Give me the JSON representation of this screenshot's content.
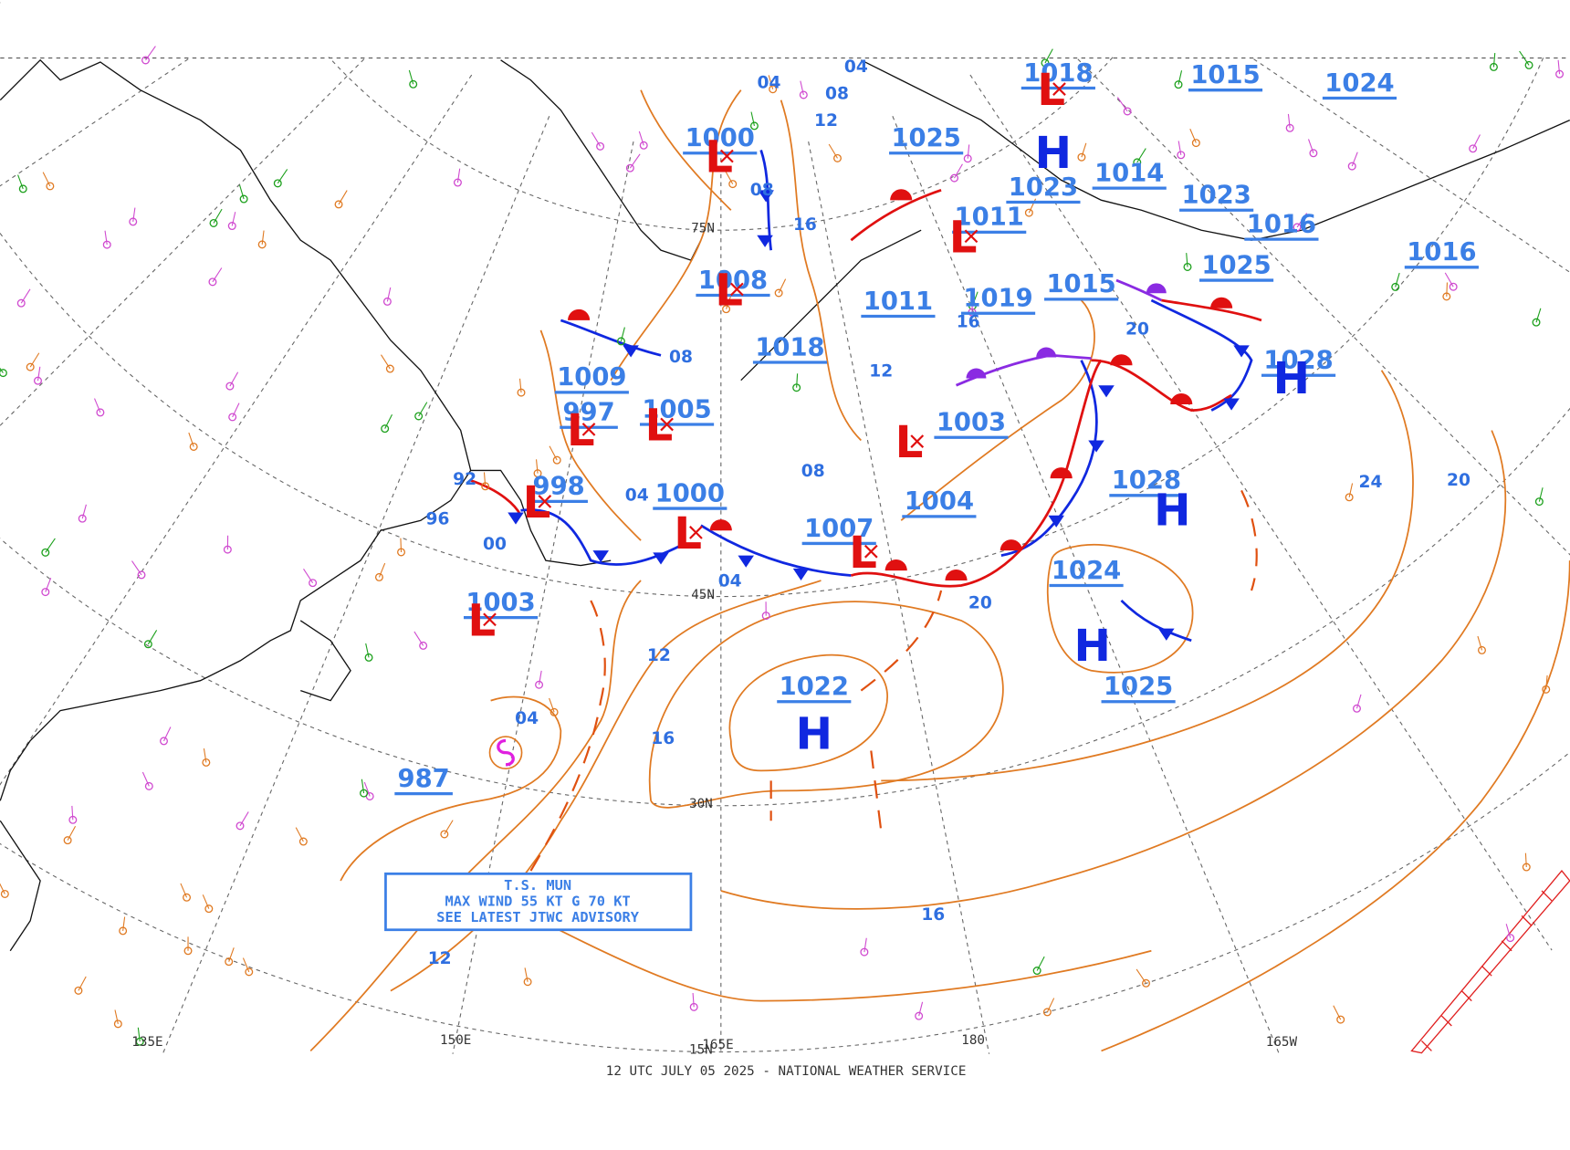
{
  "footer": "12 UTC JULY 05 2025 - NATIONAL WEATHER SERVICE",
  "storm_box": {
    "lines": [
      "T.S. MUN",
      "MAX WIND 55 KT G 70 KT",
      "SEE LATEST JTWC ADVISORY"
    ]
  },
  "grid_labels": [
    "75N",
    "45N",
    "30N",
    "15N",
    "135E",
    "150E",
    "165E",
    "180",
    "165W"
  ],
  "centers": [
    {
      "pressure": "1000",
      "symbol": "L"
    },
    {
      "pressure": "1008",
      "symbol": "L"
    },
    {
      "pressure": "1009"
    },
    {
      "pressure": "997",
      "symbol": "L"
    },
    {
      "pressure": "1005",
      "symbol": "L"
    },
    {
      "pressure": "998",
      "symbol": "L"
    },
    {
      "pressure": "1000",
      "symbol": "L"
    },
    {
      "pressure": "1007",
      "symbol": "L"
    },
    {
      "pressure": "1003",
      "symbol": "L"
    },
    {
      "pressure": "1003",
      "symbol": "L"
    },
    {
      "pressure": "1011",
      "symbol": "L"
    },
    {
      "pressure": "1018",
      "symbol": "L"
    },
    {
      "pressure": "987"
    },
    {
      "pressure": "1022",
      "symbol": "H"
    },
    {
      "pressure": "1028",
      "symbol": "H"
    },
    {
      "pressure": "1024",
      "symbol": "H"
    },
    {
      "pressure": "1025"
    },
    {
      "pressure": "1023",
      "symbol": "H"
    },
    {
      "pressure": "1015"
    },
    {
      "pressure": "1019"
    },
    {
      "pressure": "1018"
    },
    {
      "pressure": "1011"
    },
    {
      "pressure": "1014"
    },
    {
      "pressure": "1023"
    },
    {
      "pressure": "1016"
    },
    {
      "pressure": "1025"
    },
    {
      "pressure": "1016"
    },
    {
      "pressure": "1028",
      "symbol": "H"
    },
    {
      "pressure": "1024"
    },
    {
      "pressure": "1015"
    },
    {
      "pressure": "1025"
    },
    {
      "pressure": "1004"
    }
  ],
  "isobar_labels": [
    "04",
    "08",
    "12",
    "16",
    "08",
    "08",
    "04",
    "04",
    "08",
    "12",
    "16",
    "04",
    "12",
    "20",
    "24",
    "20",
    "16",
    "16",
    "20",
    "92",
    "96",
    "00",
    "12",
    "04"
  ]
}
